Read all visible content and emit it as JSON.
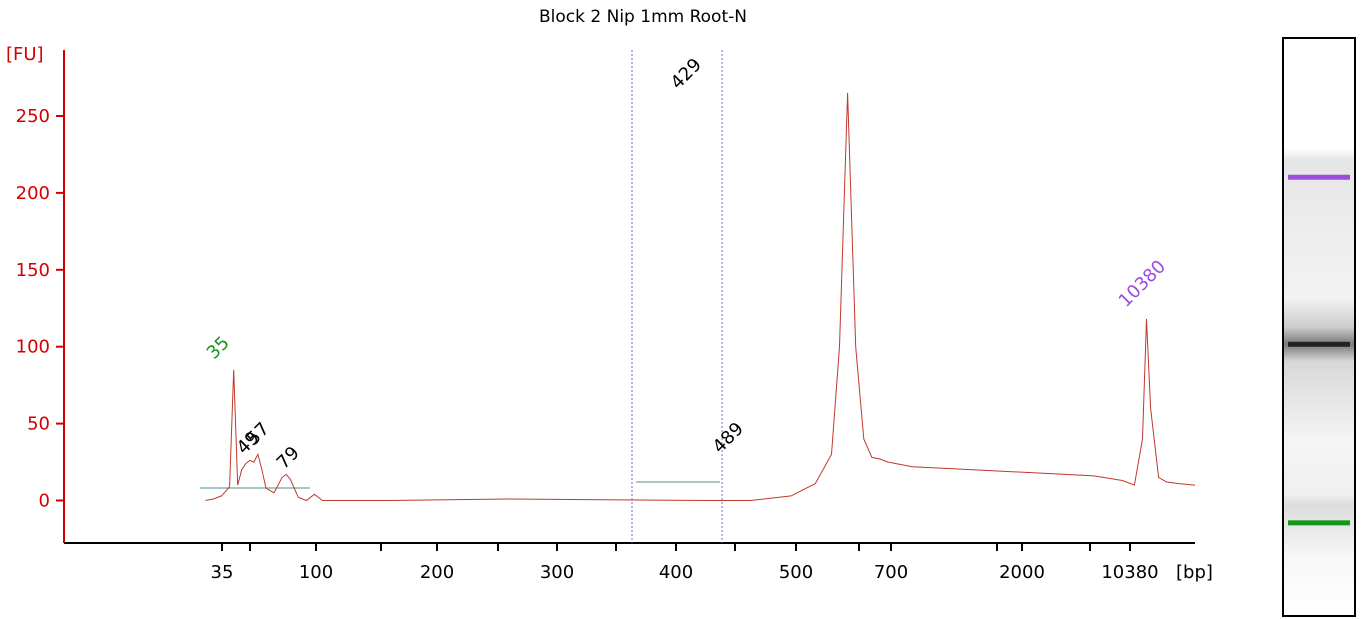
{
  "chart_data": {
    "type": "line",
    "title": "Block 2 Nip 1mm Root-N",
    "ylabel": "[FU]",
    "xlabel": "[bp]",
    "ylim": [
      -25,
      290
    ],
    "y_ticks": [
      0,
      50,
      100,
      150,
      200,
      250
    ],
    "x_ticks": [
      "35",
      "",
      "100",
      "",
      "200",
      "",
      "300",
      "",
      "400",
      "",
      "500",
      "",
      "700",
      "",
      "2000",
      "",
      "10380"
    ],
    "series": [
      {
        "points": [
          [
            35,
            0
          ],
          [
            37,
            1
          ],
          [
            39,
            3
          ],
          [
            40,
            6
          ],
          [
            41,
            9
          ],
          [
            42,
            85
          ],
          [
            43,
            10
          ],
          [
            44,
            20
          ],
          [
            45,
            24
          ],
          [
            46,
            26
          ],
          [
            47,
            25
          ],
          [
            48,
            30
          ],
          [
            49,
            20
          ],
          [
            50,
            8
          ],
          [
            52,
            5
          ],
          [
            54,
            15
          ],
          [
            55,
            17
          ],
          [
            56,
            14
          ],
          [
            58,
            2
          ],
          [
            60,
            0
          ],
          [
            62,
            4
          ],
          [
            64,
            0
          ],
          [
            80,
            0
          ],
          [
            110,
            1
          ],
          [
            160,
            0
          ],
          [
            170,
            0
          ],
          [
            180,
            3
          ],
          [
            186,
            11
          ],
          [
            190,
            30
          ],
          [
            192,
            100
          ],
          [
            194,
            265
          ],
          [
            196,
            100
          ],
          [
            198,
            40
          ],
          [
            200,
            28
          ],
          [
            202,
            27
          ],
          [
            204,
            25
          ],
          [
            206,
            24
          ],
          [
            210,
            22
          ],
          [
            225,
            20
          ],
          [
            240,
            18
          ],
          [
            255,
            16
          ],
          [
            262,
            13
          ],
          [
            265,
            10
          ],
          [
            267,
            40
          ],
          [
            268,
            118
          ],
          [
            269,
            60
          ],
          [
            271,
            15
          ],
          [
            273,
            12
          ],
          [
            276,
            11
          ],
          [
            280,
            10
          ]
        ]
      }
    ],
    "peaks": [
      {
        "label": "35",
        "color": "#16961a"
      },
      {
        "label": "49",
        "color": "#000000"
      },
      {
        "label": "57",
        "color": "#000000"
      },
      {
        "label": "79",
        "color": "#000000"
      },
      {
        "label": "429",
        "color": "#000000"
      },
      {
        "label": "489",
        "color": "#000000"
      },
      {
        "label": "10380",
        "color": "#9b4dde"
      }
    ],
    "grid": false,
    "colors": {
      "trace": "#c0392b",
      "axis_labels": "#d40000",
      "baseline": "#4a8f8f",
      "region_marker": "#6b6bd6"
    }
  },
  "gel_bands": [
    {
      "name": "upper-marker",
      "color": "#9b4dde",
      "level": 0.24
    },
    {
      "name": "main-band",
      "color": "#222222",
      "level": 0.53
    },
    {
      "name": "lower-marker",
      "color": "#16961a",
      "level": 0.84
    }
  ]
}
